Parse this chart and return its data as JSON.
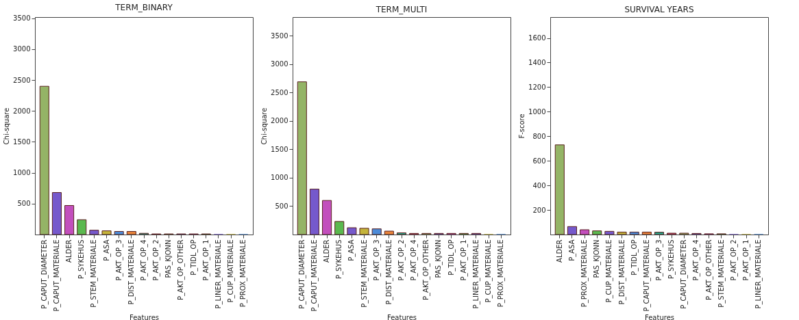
{
  "chart_data": [
    {
      "type": "bar",
      "title": "TERM_BINARY",
      "xlabel": "Features",
      "ylabel": "Chi-square",
      "categories": [
        "P_CAPUT_DIAMETER",
        "P_CAPUT_MATERIALE",
        "ALDER",
        "P_SYKEHUS",
        "P_STEM_MATERIALE",
        "P_ASA",
        "P_AKT_OP_3",
        "P_DIST_MATERIALE",
        "P_AKT_OP_4",
        "P_AKT_OP_2",
        "PAS_KJONN",
        "P_AKT_OP_OTHER",
        "P_TIDL_OP",
        "P_AKT_OP_1",
        "P_LINER_MATERIALE",
        "P_CUP_MATERIALE",
        "P_PROX_MATERIALE"
      ],
      "values": [
        2400,
        680,
        470,
        240,
        70,
        60,
        50,
        50,
        20,
        10,
        10,
        10,
        10,
        10,
        0,
        0,
        0
      ],
      "colors": [
        "#94b466",
        "#7559cc",
        "#c24fbd",
        "#5ab94f",
        "#7559cc",
        "#c4b43a",
        "#4c8bd8",
        "#e8843a",
        "#2aa68a",
        "#c2466a",
        "#94b466",
        "#7559cc",
        "#c24fbd",
        "#5ab94f",
        "#7559cc",
        "#c4b43a",
        "#4c8bd8"
      ],
      "ylim": [
        0,
        3520
      ],
      "yticks": [
        500,
        1000,
        1500,
        2000,
        2500,
        3000,
        3500
      ]
    },
    {
      "type": "bar",
      "title": "TERM_MULTI",
      "xlabel": "Features",
      "ylabel": "Chi-square",
      "categories": [
        "P_CAPUT_DIAMETER",
        "P_CAPUT_MATERIALE",
        "ALDER",
        "P_SYKEHUS",
        "P_ASA",
        "P_STEM_MATERIALE",
        "P_AKT_OP_3",
        "P_DIST_MATERIALE",
        "P_AKT_OP_2",
        "P_AKT_OP_4",
        "P_AKT_OP_OTHER",
        "PAS_KJONN",
        "P_TIDL_OP",
        "P_AKT_OP_1",
        "P_LINER_MATERIALE",
        "P_CUP_MATERIALE",
        "P_PROX_MATERIALE"
      ],
      "values": [
        2690,
        800,
        600,
        230,
        120,
        110,
        100,
        60,
        30,
        20,
        20,
        20,
        20,
        20,
        20,
        0,
        0
      ],
      "colors": [
        "#94b466",
        "#7559cc",
        "#c24fbd",
        "#5ab94f",
        "#7559cc",
        "#c4b43a",
        "#4c8bd8",
        "#e8843a",
        "#2aa68a",
        "#c2466a",
        "#94b466",
        "#7559cc",
        "#c24fbd",
        "#5ab94f",
        "#7559cc",
        "#c4b43a",
        "#4c8bd8"
      ],
      "ylim": [
        0,
        3830
      ],
      "yticks": [
        500,
        1000,
        1500,
        2000,
        2500,
        3000,
        3500
      ]
    },
    {
      "type": "bar",
      "title": "SURVIVAL YEARS",
      "xlabel": "Features",
      "ylabel": "F-score",
      "categories": [
        "ALDER",
        "P_ASA",
        "P_PROX_MATERIALE",
        "PAS_KJONN",
        "P_CUP_MATERIALE",
        "P_DIST_MATERIALE",
        "P_TIDL_OP",
        "P_CAPUT_MATERIALE",
        "P_AKT_OP_3",
        "P_SYKEHUS",
        "P_CAPUT_DIAMETER",
        "P_AKT_OP_4",
        "P_AKT_OP_OTHER",
        "P_STEM_MATERIALE",
        "P_AKT_OP_2",
        "P_AKT_OP_1",
        "P_LINER_MATERIALE"
      ],
      "values": [
        730,
        65,
        39,
        30,
        26,
        20,
        20,
        20,
        19,
        11,
        11,
        9,
        6,
        6,
        0,
        0,
        0
      ],
      "colors": [
        "#94b466",
        "#7559cc",
        "#c24fbd",
        "#5ab94f",
        "#7559cc",
        "#c4b43a",
        "#4c8bd8",
        "#e8843a",
        "#2aa68a",
        "#c2466a",
        "#94b466",
        "#7559cc",
        "#c24fbd",
        "#5ab94f",
        "#7559cc",
        "#c4b43a",
        "#4c8bd8"
      ],
      "ylim": [
        0,
        1770
      ],
      "yticks": [
        200,
        400,
        600,
        800,
        1000,
        1200,
        1400,
        1600
      ]
    }
  ]
}
